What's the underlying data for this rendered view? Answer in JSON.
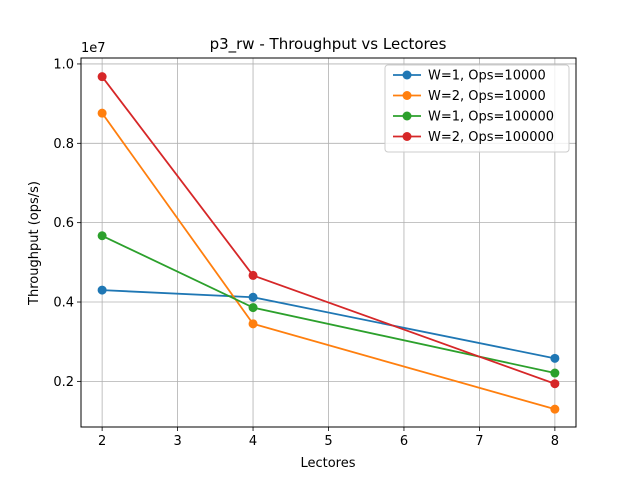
{
  "chart_data": {
    "type": "line",
    "title": "p3_rw - Throughput vs Lectores",
    "xlabel": "Lectores",
    "ylabel": "Throughput (ops/s)",
    "y_scale_label": "1e7",
    "x": [
      2,
      4,
      8
    ],
    "x_ticks": [
      "2",
      "3",
      "4",
      "5",
      "6",
      "7",
      "8"
    ],
    "y_ticks": [
      "0.2",
      "0.4",
      "0.6",
      "0.8",
      "1.0"
    ],
    "xlim": [
      1.72,
      8.28
    ],
    "ylim": [
      0.085,
      1.015
    ],
    "grid": true,
    "legend_position": "top-right",
    "series": [
      {
        "name": "W=1, Ops=10000",
        "color": "#1f77b4",
        "values": [
          0.43,
          0.412,
          0.258
        ]
      },
      {
        "name": "W=2, Ops=10000",
        "color": "#ff7f0e",
        "values": [
          0.876,
          0.345,
          0.13
        ]
      },
      {
        "name": "W=1, Ops=100000",
        "color": "#2ca02c",
        "values": [
          0.567,
          0.386,
          0.221
        ]
      },
      {
        "name": "W=2, Ops=100000",
        "color": "#d62728",
        "values": [
          0.968,
          0.467,
          0.194
        ]
      }
    ]
  }
}
